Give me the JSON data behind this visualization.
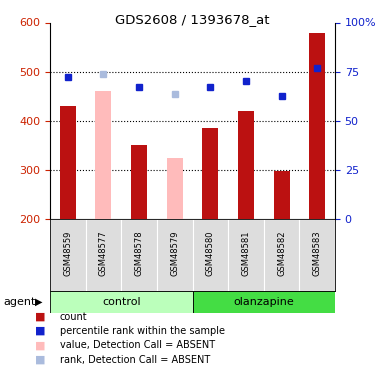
{
  "title": "GDS2608 / 1393678_at",
  "samples": [
    "GSM48559",
    "GSM48577",
    "GSM48578",
    "GSM48579",
    "GSM48580",
    "GSM48581",
    "GSM48582",
    "GSM48583"
  ],
  "bar_present": [
    430,
    null,
    352,
    null,
    385,
    420,
    298,
    578
  ],
  "bar_absent": [
    null,
    460,
    null,
    325,
    null,
    null,
    null,
    null
  ],
  "rank_present": [
    490,
    null,
    468,
    null,
    468,
    482,
    450,
    508
  ],
  "rank_absent": [
    null,
    495,
    null,
    454,
    null,
    null,
    null,
    null
  ],
  "bar_color": "#bb1111",
  "bar_absent_color": "#ffbbbb",
  "rank_color": "#1122cc",
  "rank_absent_color": "#aabbdd",
  "ylim": [
    200,
    600
  ],
  "yticks_left": [
    200,
    300,
    400,
    500,
    600
  ],
  "yticks_right": [
    0,
    25,
    50,
    75,
    100
  ],
  "hlines": [
    300,
    400,
    500
  ],
  "groups": [
    {
      "label": "control",
      "start": 0,
      "end": 3,
      "color": "#bbffbb"
    },
    {
      "label": "olanzapine",
      "start": 4,
      "end": 7,
      "color": "#44dd44"
    }
  ],
  "legend": [
    {
      "label": "count",
      "color": "#bb1111"
    },
    {
      "label": "percentile rank within the sample",
      "color": "#1122cc"
    },
    {
      "label": "value, Detection Call = ABSENT",
      "color": "#ffbbbb"
    },
    {
      "label": "rank, Detection Call = ABSENT",
      "color": "#aabbdd"
    }
  ],
  "left_color": "#cc2200",
  "right_color": "#1122cc"
}
